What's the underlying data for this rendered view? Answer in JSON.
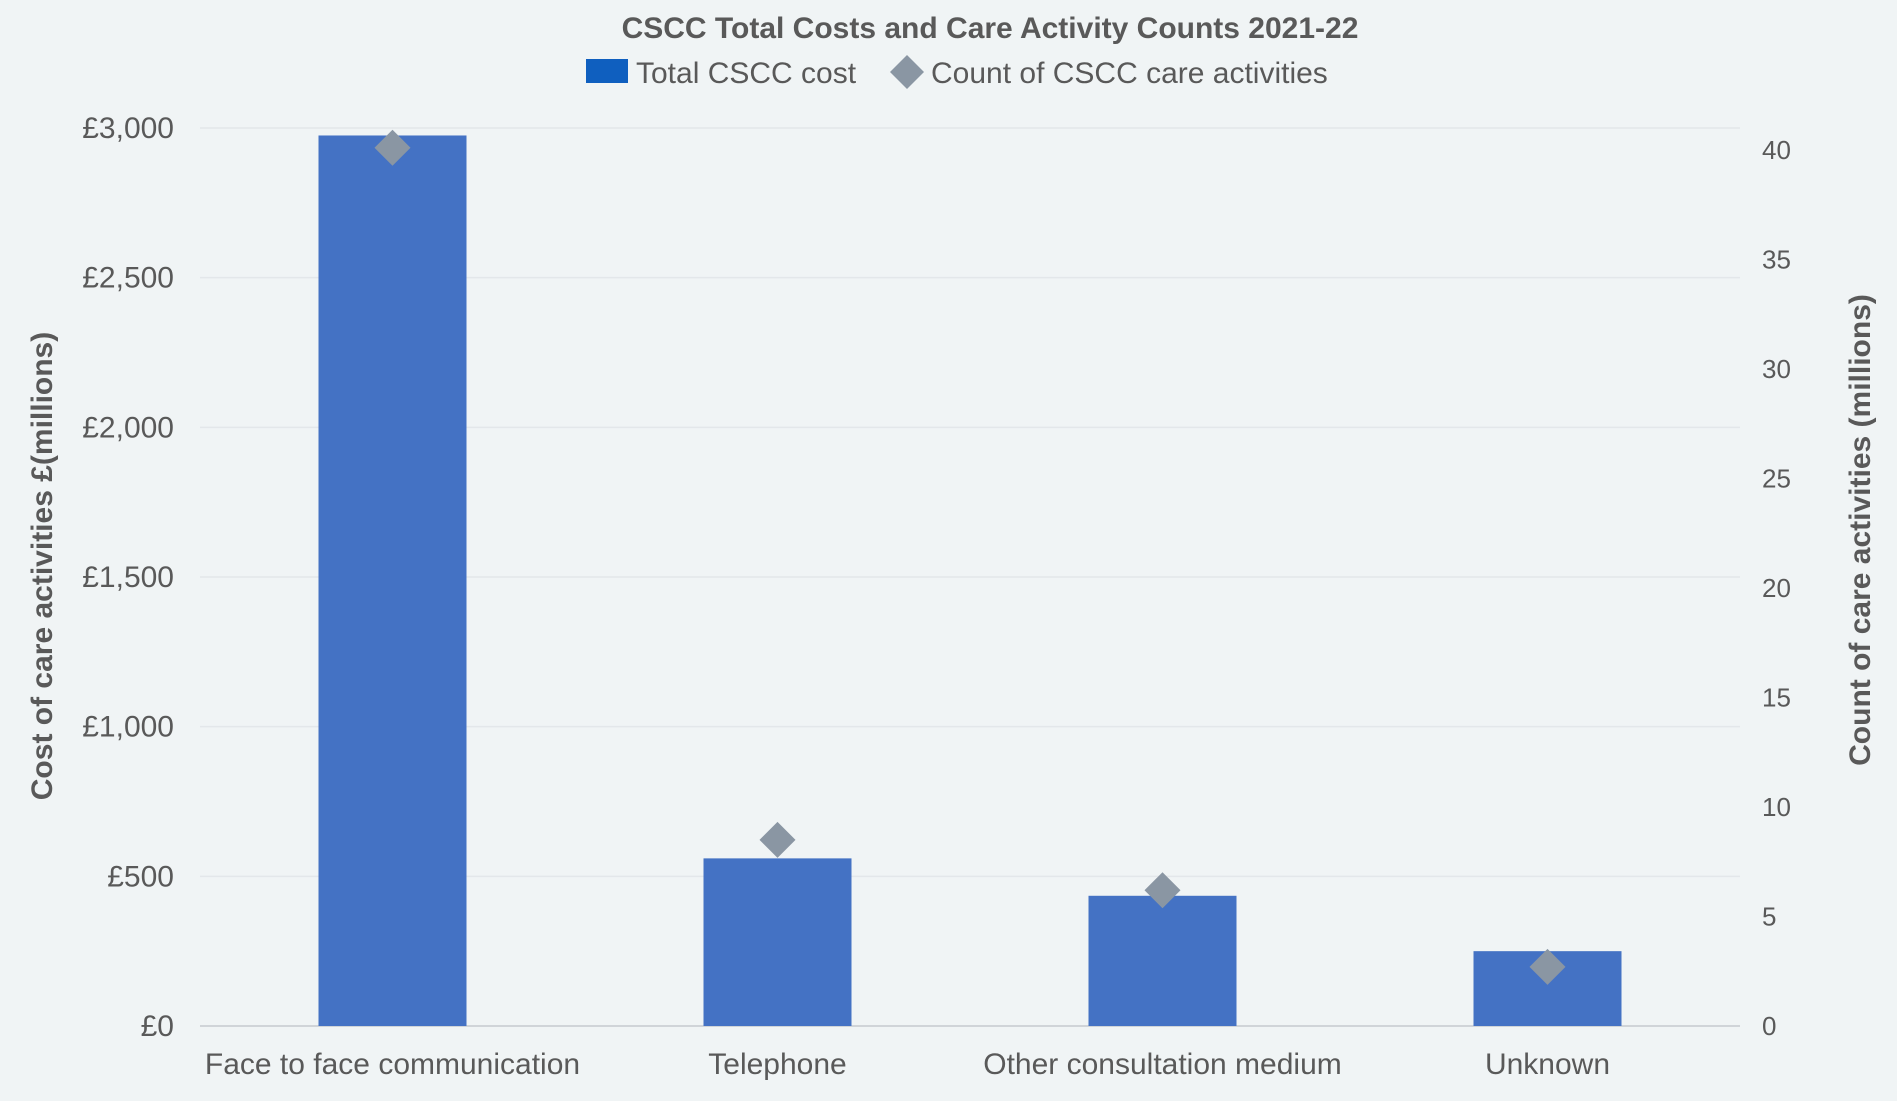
{
  "chart_data": {
    "type": "bar",
    "title": "CSCC Total Costs and Care Activity Counts 2021-22",
    "categories": [
      "Face to face communication",
      "Telephone",
      "Other consultation medium",
      "Unknown"
    ],
    "ylabel": "Cost of care activities £(millions)",
    "y2label": "Count of care activities (millions)",
    "ylim": [
      0,
      3000
    ],
    "y2lim": [
      0,
      41
    ],
    "yticks": [
      0,
      500,
      1000,
      1500,
      2000,
      2500,
      3000
    ],
    "yticklabels": [
      "£0",
      "£500",
      "£1,000",
      "£1,500",
      "£2,000",
      "£2,500",
      "£3,000"
    ],
    "y2ticks": [
      0,
      5,
      10,
      15,
      20,
      25,
      30,
      35,
      40
    ],
    "y2ticklabels": [
      "0",
      "5",
      "10",
      "15",
      "20",
      "25",
      "30",
      "35",
      "40"
    ],
    "grid": true,
    "legend_position": "top",
    "series": [
      {
        "name": "Total CSCC cost",
        "type": "bar",
        "axis": "left",
        "color": "#4472c4",
        "legend_color": "#0f5fbf",
        "values": [
          2975,
          560,
          435,
          250
        ]
      },
      {
        "name": "Count of CSCC care activities",
        "type": "scatter",
        "marker": "diamond",
        "axis": "right",
        "color": "#8a96a3",
        "values": [
          40.1,
          8.5,
          6.2,
          2.7
        ]
      }
    ]
  }
}
